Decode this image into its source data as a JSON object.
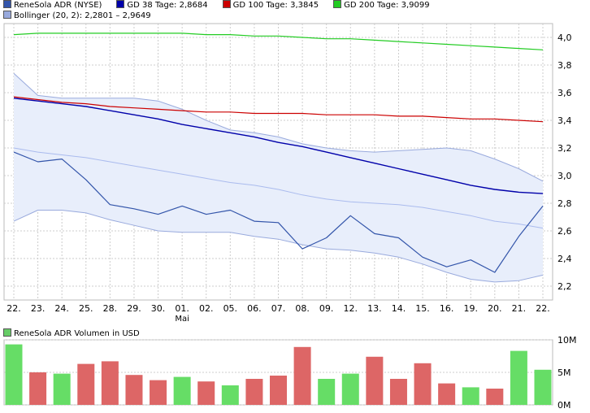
{
  "legend": {
    "price": {
      "label": "ReneSola ADR (NYSE)",
      "color": "#3355aa"
    },
    "gd38": {
      "label": "GD 38 Tage: 2,8684",
      "color": "#0000aa"
    },
    "gd100": {
      "label": "GD 100 Tage: 3,3845",
      "color": "#cc0000"
    },
    "gd200": {
      "label": "GD 200 Tage: 3,9099",
      "color": "#22cc22"
    },
    "bollinger": {
      "label": "Bollinger (20, 2): 2,2801 – 2,9649",
      "color": "#99aadd"
    }
  },
  "volume_legend": {
    "label": "ReneSola ADR Volumen in USD",
    "color": "#66cc66"
  },
  "colors": {
    "up": "#66dd66",
    "down": "#dd6666",
    "band_fill": "#e8eefb"
  },
  "chart_data": [
    {
      "type": "line",
      "title": "ReneSola ADR (NYSE)",
      "categories": [
        "22.",
        "23.",
        "24.",
        "25.",
        "28.",
        "29.",
        "30.",
        "01.",
        "02.",
        "05.",
        "06.",
        "07.",
        "08.",
        "09.",
        "12.",
        "13.",
        "14.",
        "15.",
        "16.",
        "19.",
        "20.",
        "21.",
        "22."
      ],
      "month_label": "Mai",
      "yticks": [
        "2,2",
        "2,4",
        "2,6",
        "2,8",
        "3,0",
        "3,2",
        "3,4",
        "3,6",
        "3,8",
        "4,0"
      ],
      "ylim": [
        2.1,
        4.1
      ],
      "series": [
        {
          "name": "ReneSola ADR (NYSE)",
          "values": [
            3.17,
            3.1,
            3.12,
            2.97,
            2.79,
            2.76,
            2.72,
            2.78,
            2.72,
            2.75,
            2.67,
            2.66,
            2.47,
            2.55,
            2.71,
            2.58,
            2.55,
            2.41,
            2.34,
            2.39,
            2.3,
            2.56,
            2.78
          ]
        },
        {
          "name": "GD 38 Tage",
          "values": [
            3.56,
            3.54,
            3.52,
            3.5,
            3.47,
            3.44,
            3.41,
            3.37,
            3.34,
            3.31,
            3.28,
            3.24,
            3.21,
            3.17,
            3.13,
            3.09,
            3.05,
            3.01,
            2.97,
            2.93,
            2.9,
            2.88,
            2.87
          ]
        },
        {
          "name": "GD 100 Tage",
          "values": [
            3.57,
            3.55,
            3.53,
            3.52,
            3.5,
            3.49,
            3.48,
            3.47,
            3.46,
            3.46,
            3.45,
            3.45,
            3.45,
            3.44,
            3.44,
            3.44,
            3.43,
            3.43,
            3.42,
            3.41,
            3.41,
            3.4,
            3.39
          ]
        },
        {
          "name": "GD 200 Tage",
          "values": [
            4.02,
            4.03,
            4.03,
            4.03,
            4.03,
            4.03,
            4.03,
            4.03,
            4.02,
            4.02,
            4.01,
            4.01,
            4.0,
            3.99,
            3.99,
            3.98,
            3.97,
            3.96,
            3.95,
            3.94,
            3.93,
            3.92,
            3.91
          ]
        },
        {
          "name": "Bollinger upper",
          "values": [
            3.74,
            3.58,
            3.56,
            3.56,
            3.56,
            3.56,
            3.54,
            3.48,
            3.4,
            3.33,
            3.31,
            3.28,
            3.23,
            3.2,
            3.18,
            3.17,
            3.18,
            3.19,
            3.2,
            3.18,
            3.12,
            3.05,
            2.96
          ]
        },
        {
          "name": "Bollinger middle",
          "values": [
            3.2,
            3.17,
            3.15,
            3.13,
            3.1,
            3.07,
            3.04,
            3.01,
            2.98,
            2.95,
            2.93,
            2.9,
            2.86,
            2.83,
            2.81,
            2.8,
            2.79,
            2.77,
            2.74,
            2.71,
            2.67,
            2.65,
            2.62
          ]
        },
        {
          "name": "Bollinger lower",
          "values": [
            2.67,
            2.75,
            2.75,
            2.73,
            2.68,
            2.64,
            2.6,
            2.59,
            2.59,
            2.59,
            2.56,
            2.54,
            2.5,
            2.47,
            2.46,
            2.44,
            2.41,
            2.36,
            2.3,
            2.25,
            2.23,
            2.24,
            2.28
          ]
        }
      ]
    },
    {
      "type": "bar",
      "title": "ReneSola ADR Volumen in USD",
      "categories": [
        "22.",
        "23.",
        "24.",
        "25.",
        "28.",
        "29.",
        "30.",
        "01.",
        "02.",
        "05.",
        "06.",
        "07.",
        "08.",
        "09.",
        "12.",
        "13.",
        "14.",
        "15.",
        "16.",
        "19.",
        "20.",
        "21.",
        "22."
      ],
      "values": [
        9.3,
        5.0,
        4.8,
        6.3,
        6.7,
        4.6,
        3.8,
        4.3,
        3.6,
        3.0,
        4.0,
        4.5,
        8.9,
        4.0,
        4.8,
        7.4,
        4.0,
        6.4,
        3.3,
        2.7,
        2.5,
        8.3,
        5.4
      ],
      "direction": [
        "up",
        "down",
        "up",
        "down",
        "down",
        "down",
        "down",
        "up",
        "down",
        "up",
        "down",
        "down",
        "down",
        "up",
        "up",
        "down",
        "down",
        "down",
        "down",
        "up",
        "down",
        "up",
        "up"
      ],
      "yticks": [
        "0M",
        "5M",
        "10M"
      ],
      "ylim": [
        0,
        10
      ]
    }
  ]
}
